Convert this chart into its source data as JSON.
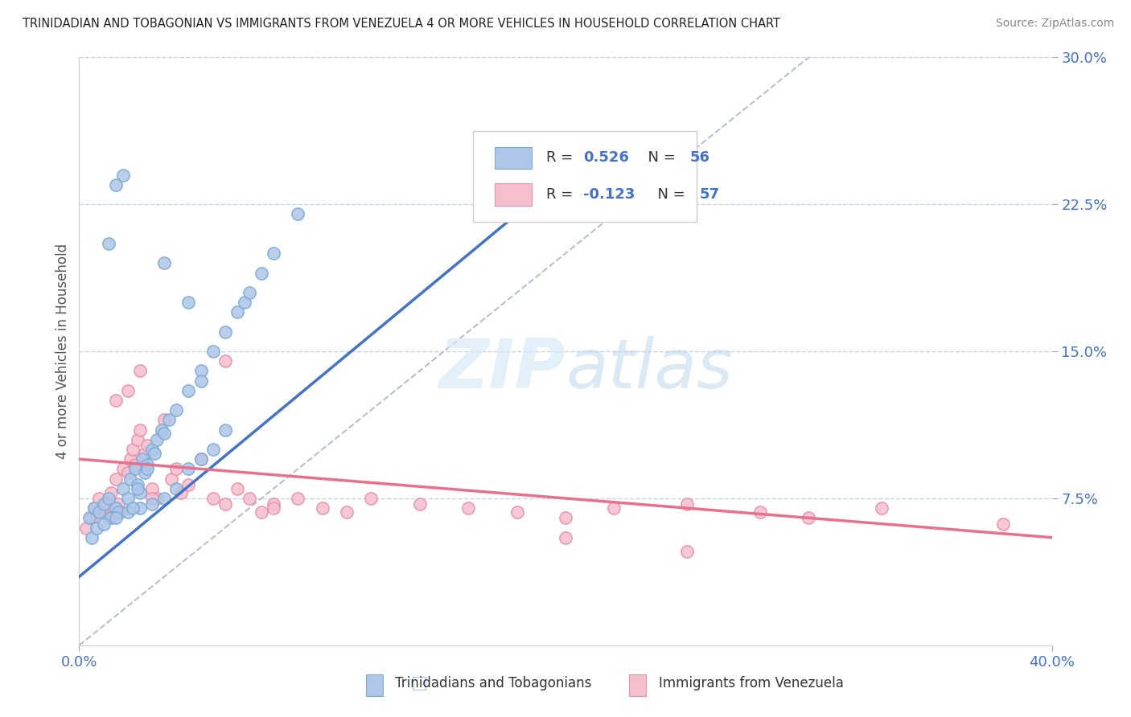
{
  "title": "TRINIDADIAN AND TOBAGONIAN VS IMMIGRANTS FROM VENEZUELA 4 OR MORE VEHICLES IN HOUSEHOLD CORRELATION CHART",
  "source": "Source: ZipAtlas.com",
  "ylabel": "4 or more Vehicles in Household",
  "legend_label_blue": "Trinidadians and Tobagonians",
  "legend_label_pink": "Immigrants from Venezuela",
  "blue_fill": "#aec6e8",
  "blue_edge": "#7aaad4",
  "pink_fill": "#f5bfce",
  "pink_edge": "#e890a8",
  "blue_line_color": "#4472c4",
  "pink_line_color": "#e8708c",
  "diagonal_color": "#b0b8c8",
  "watermark_color": "#d8eaf8",
  "watermark_text_color": "#c8dff0",
  "grid_color": "#c8d4e8",
  "background_color": "#ffffff",
  "blue_R": "0.526",
  "blue_N": "56",
  "pink_R": "-0.123",
  "pink_N": "57",
  "xlim": [
    0,
    40
  ],
  "ylim": [
    0,
    30
  ],
  "ytick_positions": [
    7.5,
    15.0,
    22.5,
    30.0
  ],
  "blue_scatter_x": [
    0.4,
    0.6,
    0.8,
    1.0,
    1.2,
    1.3,
    1.5,
    1.6,
    1.8,
    2.0,
    2.1,
    2.3,
    2.4,
    2.5,
    2.6,
    2.7,
    2.8,
    3.0,
    3.1,
    3.2,
    3.4,
    3.5,
    3.7,
    4.0,
    4.5,
    5.0,
    5.5,
    6.0,
    6.5,
    6.8,
    7.0,
    7.5,
    8.0,
    9.0,
    0.5,
    0.7,
    1.0,
    1.5,
    2.0,
    2.5,
    3.0,
    3.5,
    4.0,
    4.5,
    5.0,
    5.5,
    6.0,
    3.5,
    4.5,
    5.0,
    1.2,
    1.5,
    1.8,
    2.2,
    2.4,
    2.8
  ],
  "blue_scatter_y": [
    6.5,
    7.0,
    6.8,
    7.2,
    7.5,
    6.5,
    7.0,
    6.8,
    8.0,
    7.5,
    8.5,
    9.0,
    8.2,
    7.8,
    9.5,
    8.8,
    9.2,
    10.0,
    9.8,
    10.5,
    11.0,
    10.8,
    11.5,
    12.0,
    13.0,
    14.0,
    15.0,
    16.0,
    17.0,
    17.5,
    18.0,
    19.0,
    20.0,
    22.0,
    5.5,
    6.0,
    6.2,
    6.5,
    6.8,
    7.0,
    7.2,
    7.5,
    8.0,
    9.0,
    9.5,
    10.0,
    11.0,
    19.5,
    17.5,
    13.5,
    20.5,
    23.5,
    24.0,
    7.0,
    8.0,
    9.0
  ],
  "pink_scatter_x": [
    0.3,
    0.5,
    0.6,
    0.8,
    1.0,
    1.1,
    1.2,
    1.3,
    1.4,
    1.5,
    1.6,
    1.7,
    1.8,
    2.0,
    2.1,
    2.2,
    2.3,
    2.4,
    2.5,
    2.7,
    2.8,
    3.0,
    3.2,
    3.5,
    3.8,
    4.0,
    4.2,
    4.5,
    5.0,
    5.5,
    6.0,
    6.5,
    7.0,
    7.5,
    8.0,
    9.0,
    10.0,
    11.0,
    12.0,
    14.0,
    16.0,
    18.0,
    20.0,
    22.0,
    25.0,
    28.0,
    30.0,
    33.0,
    38.0,
    1.5,
    2.0,
    2.5,
    3.0,
    6.0,
    8.0,
    20.0,
    25.0
  ],
  "pink_scatter_y": [
    6.0,
    6.5,
    7.0,
    7.5,
    6.8,
    7.2,
    6.5,
    7.8,
    7.0,
    8.5,
    7.2,
    6.8,
    9.0,
    8.8,
    9.5,
    10.0,
    9.2,
    10.5,
    11.0,
    9.8,
    10.2,
    8.0,
    7.5,
    11.5,
    8.5,
    9.0,
    7.8,
    8.2,
    9.5,
    7.5,
    7.2,
    8.0,
    7.5,
    6.8,
    7.2,
    7.5,
    7.0,
    6.8,
    7.5,
    7.2,
    7.0,
    6.8,
    6.5,
    7.0,
    7.2,
    6.8,
    6.5,
    7.0,
    6.2,
    12.5,
    13.0,
    14.0,
    7.5,
    14.5,
    7.0,
    5.5,
    4.8
  ],
  "blue_line_x": [
    0,
    18
  ],
  "blue_line_y": [
    3.5,
    22.0
  ],
  "pink_line_x": [
    0,
    40
  ],
  "pink_line_y": [
    9.5,
    5.5
  ]
}
